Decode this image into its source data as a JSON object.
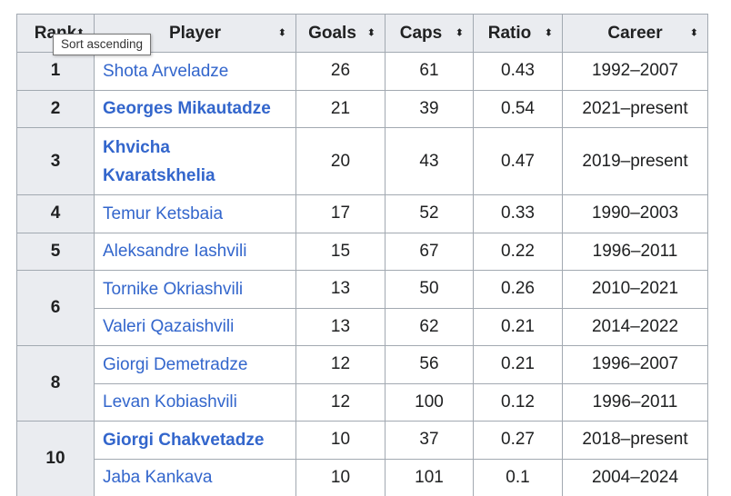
{
  "table": {
    "headers": {
      "rank": "Rank",
      "player": "Player",
      "goals": "Goals",
      "caps": "Caps",
      "ratio": "Ratio",
      "career": "Career"
    },
    "sort_glyph": "⬍",
    "rows": [
      {
        "rank": "1",
        "player": "Shota Arveladze",
        "goals": "26",
        "caps": "61",
        "ratio": "0.43",
        "career": "1992–2007"
      },
      {
        "rank": "2",
        "player": "Georges Mikautadze",
        "goals": "21",
        "caps": "39",
        "ratio": "0.54",
        "career": "2021–present"
      },
      {
        "rank": "3",
        "player_line1": "Khvicha",
        "player_line2": "Kvaratskhelia",
        "goals": "20",
        "caps": "43",
        "ratio": "0.47",
        "career": "2019–present"
      },
      {
        "rank": "4",
        "player": "Temur Ketsbaia",
        "goals": "17",
        "caps": "52",
        "ratio": "0.33",
        "career": "1990–2003"
      },
      {
        "rank": "5",
        "player": "Aleksandre Iashvili",
        "goals": "15",
        "caps": "67",
        "ratio": "0.22",
        "career": "1996–2011"
      },
      {
        "rank": "6",
        "player": "Tornike Okriashvili",
        "goals": "13",
        "caps": "50",
        "ratio": "0.26",
        "career": "2010–2021"
      },
      {
        "player": "Valeri Qazaishvili",
        "goals": "13",
        "caps": "62",
        "ratio": "0.21",
        "career": "2014–2022"
      },
      {
        "rank": "8",
        "player": "Giorgi Demetradze",
        "goals": "12",
        "caps": "56",
        "ratio": "0.21",
        "career": "1996–2007"
      },
      {
        "player": "Levan Kobiashvili",
        "goals": "12",
        "caps": "100",
        "ratio": "0.12",
        "career": "1996–2011"
      },
      {
        "rank": "10",
        "player": "Giorgi Chakvetadze",
        "goals": "10",
        "caps": "37",
        "ratio": "0.27",
        "career": "2018–present"
      },
      {
        "player": "Jaba Kankava",
        "goals": "10",
        "caps": "101",
        "ratio": "0.1",
        "career": "2004–2024"
      }
    ]
  },
  "tooltip": {
    "text": "Sort ascending"
  },
  "colors": {
    "link": "#3366cc",
    "header_bg": "#eaecf0",
    "border": "#a2a9b1",
    "text": "#202122"
  }
}
